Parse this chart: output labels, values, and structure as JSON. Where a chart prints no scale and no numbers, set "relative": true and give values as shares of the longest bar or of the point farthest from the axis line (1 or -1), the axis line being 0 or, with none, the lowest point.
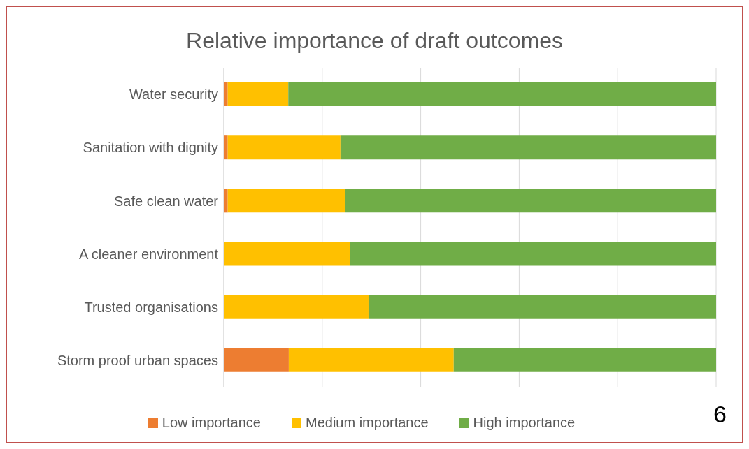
{
  "chart_data": {
    "type": "bar",
    "orientation": "horizontal",
    "stacked": true,
    "relative": true,
    "title": "Relative importance of draft outcomes",
    "categories": [
      "Water security",
      "Sanitation with dignity",
      "Safe clean water",
      "A cleaner environment",
      "Trusted organisations",
      "Storm proof urban spaces"
    ],
    "series": [
      {
        "name": "Low importance",
        "color": "#ed7d31",
        "values": [
          0.008,
          0.008,
          0.008,
          0,
          0,
          0.132
        ]
      },
      {
        "name": "Medium importance",
        "color": "#ffc000",
        "values": [
          0.123,
          0.229,
          0.238,
          0.256,
          0.294,
          0.335
        ]
      },
      {
        "name": "High importance",
        "color": "#70ad47",
        "values": [
          0.869,
          0.763,
          0.754,
          0.744,
          0.706,
          0.533
        ]
      }
    ],
    "grid": "x",
    "legend": "bottom",
    "annotations": [
      "6"
    ]
  }
}
